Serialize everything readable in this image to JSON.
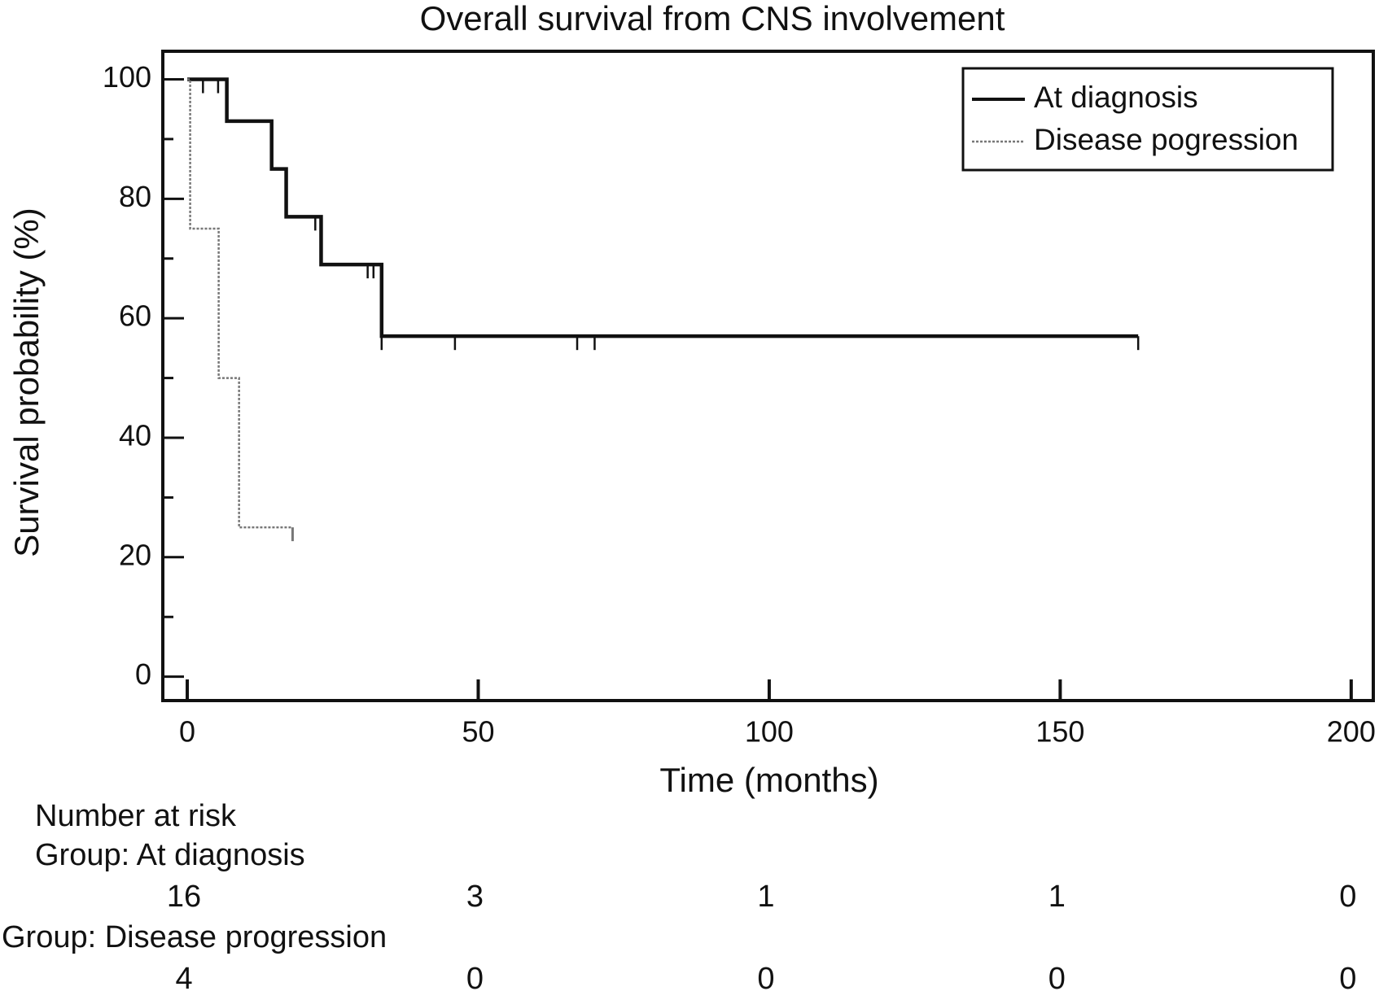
{
  "chart_data": {
    "type": "step",
    "title": "Overall survival from CNS involvement",
    "x_label": "Time (months)",
    "y_label": "Survival probability (%)",
    "xlim": [
      -4.2,
      203.8
    ],
    "ylim": [
      -4,
      104.7
    ],
    "xticks": [
      0,
      50,
      100,
      150,
      200
    ],
    "yticks": [
      0,
      20,
      40,
      60,
      80,
      100
    ],
    "y_minor_ticks": [
      10,
      30,
      50,
      70,
      90
    ],
    "legend_position": "upper right",
    "series": [
      {
        "name": "At diagnosis",
        "color": "#111111",
        "style": "solid",
        "x": [
          0,
          6.8,
          14.5,
          17,
          23,
          33.4,
          163.4
        ],
        "values": [
          100,
          93,
          85,
          77,
          69,
          57,
          57
        ],
        "censored_x": [
          2.7,
          5.3,
          22,
          31,
          32,
          33.4,
          46,
          67,
          70,
          163.4
        ],
        "censored_values": [
          100,
          100,
          77,
          69,
          69,
          57,
          57,
          57,
          57,
          57
        ]
      },
      {
        "name": "Disease pogression",
        "color": "#777777",
        "style": "dotted",
        "x": [
          0,
          0.5,
          5.4,
          8.9,
          18.1
        ],
        "values": [
          100,
          75,
          50,
          25,
          25
        ],
        "censored_x": [
          18.1
        ],
        "censored_values": [
          25
        ]
      }
    ],
    "risk_table": {
      "title": "Number at risk",
      "times": [
        0,
        50,
        100,
        150,
        200
      ],
      "groups": [
        {
          "label": "Group: At diagnosis",
          "counts": [
            16,
            3,
            1,
            1,
            0
          ]
        },
        {
          "label": "Group: Disease progression",
          "counts": [
            4,
            0,
            0,
            0,
            0
          ]
        }
      ]
    }
  }
}
